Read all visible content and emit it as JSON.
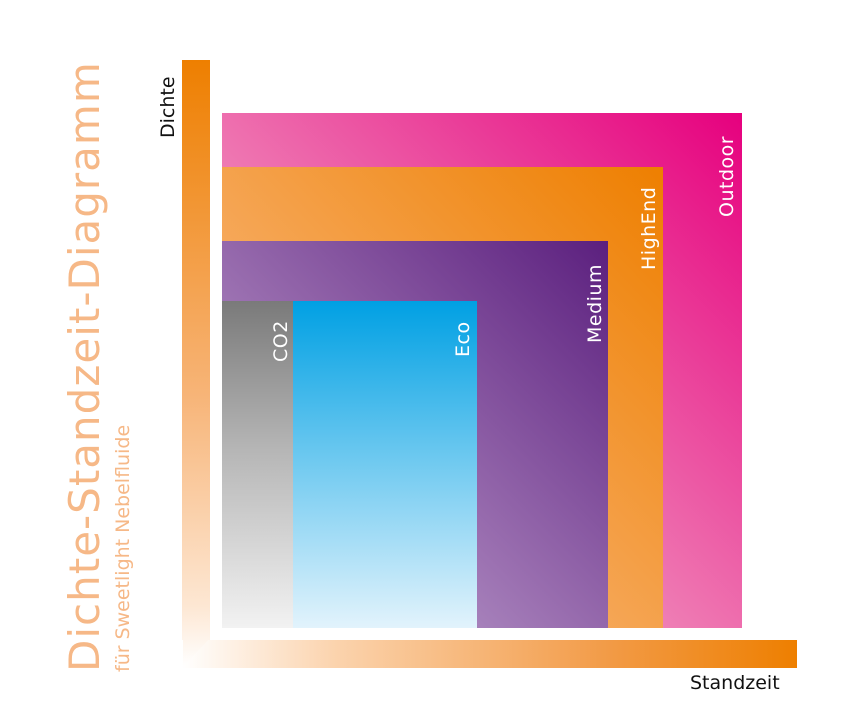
{
  "diagram": {
    "title": "Dichte-Standzeit-Diagramm",
    "subtitle": "für Sweetlight Nebelfluide",
    "y_axis_label": "Dichte",
    "x_axis_label": "Standzeit",
    "boxes": [
      {
        "name": "Outdoor",
        "color": "#e6007e"
      },
      {
        "name": "HighEnd",
        "color": "#ee7f00"
      },
      {
        "name": "Medium",
        "color": "#5b1f7e"
      },
      {
        "name": "Eco",
        "color": "#00a0e3"
      },
      {
        "name": "CO2",
        "color": "#7a7a7a"
      }
    ]
  }
}
